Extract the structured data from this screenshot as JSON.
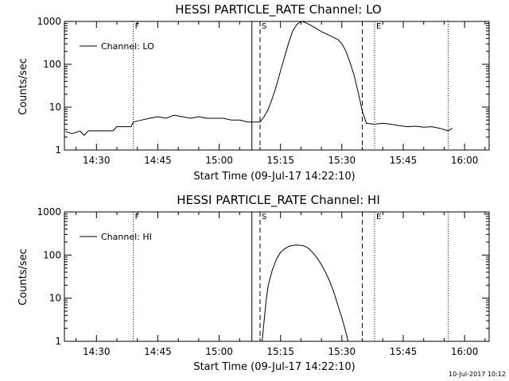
{
  "stamp": "10-Jul-2017 10:12",
  "chart_data": [
    {
      "type": "line",
      "title": "HESSI PARTICLE_RATE Channel: LO",
      "xlabel": "Start Time (09-Jul-17 14:22:10)",
      "ylabel": "Counts/sec",
      "yscale": "log",
      "ylim": [
        1,
        1000
      ],
      "xlim": [
        "14:22:10",
        "16:06:00"
      ],
      "x_ticks": [
        "14:30",
        "14:45",
        "15:00",
        "15:15",
        "15:30",
        "15:45",
        "16:00"
      ],
      "y_ticks": [
        "1",
        "10",
        "100",
        "1000"
      ],
      "legend": {
        "label": "Channel: LO",
        "position": "top-left"
      },
      "markers": [
        {
          "label": "F",
          "time": "14:39:00",
          "style": "dotted"
        },
        {
          "label": "",
          "time": "15:08:00",
          "style": "solid"
        },
        {
          "label": "S",
          "time": "15:10:00",
          "style": "dashed"
        },
        {
          "label": "",
          "time": "15:35:00",
          "style": "dashed"
        },
        {
          "label": "E",
          "time": "15:38:00",
          "style": "dotted"
        },
        {
          "label": "",
          "time": "15:56:00",
          "style": "dotted"
        }
      ],
      "series": [
        {
          "name": "Channel: LO",
          "x": [
            "14:22:30",
            "14:24:00",
            "14:26:00",
            "14:27:00",
            "14:28:00",
            "14:30:00",
            "14:32:00",
            "14:34:00",
            "14:35:00",
            "14:37:00",
            "14:38:30",
            "14:39:00",
            "14:41:00",
            "14:43:00",
            "14:45:00",
            "14:47:00",
            "14:49:00",
            "14:51:00",
            "14:53:00",
            "14:55:00",
            "14:57:00",
            "14:59:00",
            "15:01:00",
            "15:03:00",
            "15:05:00",
            "15:07:00",
            "15:08:00",
            "15:10:00",
            "15:11:00",
            "15:12:00",
            "15:13:00",
            "15:14:00",
            "15:15:00",
            "15:16:00",
            "15:17:00",
            "15:18:00",
            "15:19:00",
            "15:20:00",
            "15:21:00",
            "15:22:00",
            "15:23:00",
            "15:25:00",
            "15:27:00",
            "15:29:00",
            "15:30:00",
            "15:31:00",
            "15:32:00",
            "15:33:00",
            "15:34:00",
            "15:35:00",
            "15:36:00",
            "15:38:00",
            "15:40:00",
            "15:42:00",
            "15:44:00",
            "15:46:00",
            "15:48:00",
            "15:50:00",
            "15:52:00",
            "15:54:00",
            "15:56:00",
            "15:57:00"
          ],
          "y": [
            2.7,
            2.4,
            2.8,
            2.2,
            2.8,
            2.8,
            2.8,
            2.8,
            3.5,
            3.5,
            3.5,
            4.5,
            5.0,
            5.5,
            6.0,
            5.5,
            6.5,
            6.0,
            5.5,
            6.0,
            5.5,
            5.5,
            5.5,
            5.0,
            5.0,
            4.5,
            4.5,
            4.5,
            6,
            9,
            16,
            32,
            70,
            150,
            320,
            600,
            850,
            1000,
            950,
            850,
            750,
            580,
            470,
            380,
            300,
            200,
            110,
            55,
            22,
            8,
            4.2,
            4.0,
            4.2,
            4.0,
            3.7,
            3.5,
            3.6,
            3.4,
            3.5,
            3.2,
            2.8,
            3.2
          ]
        }
      ]
    },
    {
      "type": "line",
      "title": "HESSI PARTICLE_RATE Channel: HI",
      "xlabel": "Start Time (09-Jul-17 14:22:10)",
      "ylabel": "Counts/sec",
      "yscale": "log",
      "ylim": [
        1,
        1000
      ],
      "xlim": [
        "14:22:10",
        "16:06:00"
      ],
      "x_ticks": [
        "14:30",
        "14:45",
        "15:00",
        "15:15",
        "15:30",
        "15:45",
        "16:00"
      ],
      "y_ticks": [
        "1",
        "10",
        "100",
        "1000"
      ],
      "legend": {
        "label": "Channel: HI",
        "position": "top-left"
      },
      "markers": [
        {
          "label": "F",
          "time": "14:39:00",
          "style": "dotted"
        },
        {
          "label": "",
          "time": "15:08:00",
          "style": "solid"
        },
        {
          "label": "S",
          "time": "15:10:00",
          "style": "dashed"
        },
        {
          "label": "",
          "time": "15:35:00",
          "style": "dashed"
        },
        {
          "label": "E",
          "time": "15:38:00",
          "style": "dotted"
        },
        {
          "label": "",
          "time": "15:56:00",
          "style": "dotted"
        }
      ],
      "series": [
        {
          "name": "Channel: HI",
          "x": [
            "15:10:30",
            "15:11:00",
            "15:11:30",
            "15:12:00",
            "15:13:00",
            "15:14:00",
            "15:15:00",
            "15:16:00",
            "15:17:00",
            "15:18:00",
            "15:19:00",
            "15:20:00",
            "15:21:00",
            "15:22:00",
            "15:23:00",
            "15:24:00",
            "15:25:00",
            "15:26:00",
            "15:27:00",
            "15:28:00",
            "15:29:00",
            "15:30:00",
            "15:31:00",
            "15:31:30"
          ],
          "y": [
            1.0,
            3.0,
            9.0,
            20,
            45,
            80,
            115,
            140,
            158,
            168,
            170,
            168,
            160,
            140,
            110,
            85,
            60,
            40,
            25,
            14,
            7,
            3.5,
            1.6,
            1.0
          ]
        }
      ]
    }
  ]
}
